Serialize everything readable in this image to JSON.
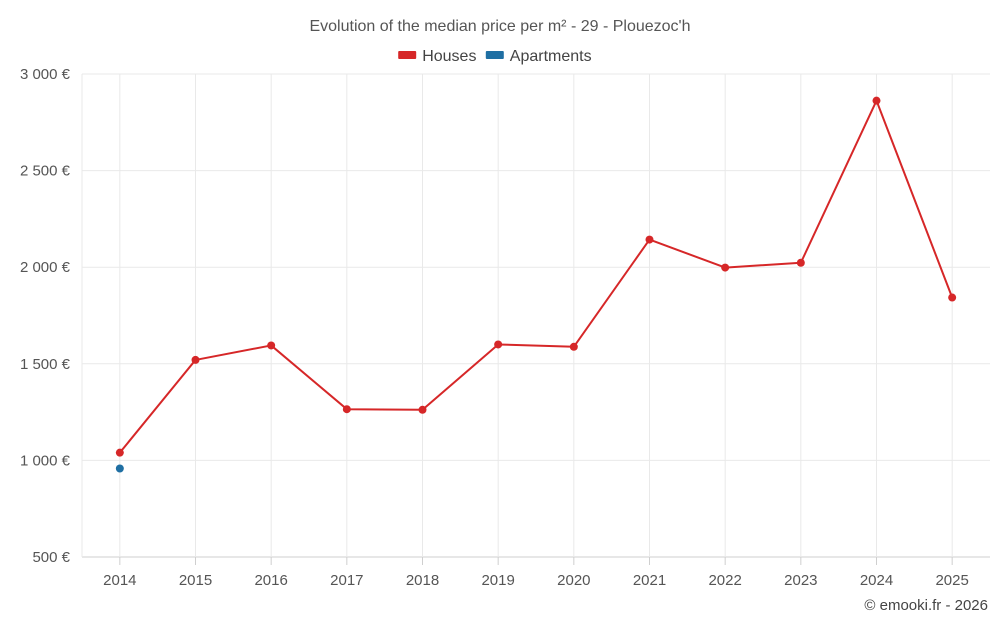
{
  "chart_data": {
    "type": "line",
    "title": "Evolution of the median price per m² - 29 - Plouezoc'h",
    "categories": [
      "2014",
      "2015",
      "2016",
      "2017",
      "2018",
      "2019",
      "2020",
      "2021",
      "2022",
      "2023",
      "2024",
      "2025"
    ],
    "ylim": [
      500,
      3000
    ],
    "yticks": [
      500,
      1000,
      1500,
      2000,
      2500,
      3000
    ],
    "ytick_labels": [
      "500 €",
      "1 000 €",
      "1 500 €",
      "2 000 €",
      "2 500 €",
      "3 000 €"
    ],
    "grid": true,
    "legend_position": "top-center",
    "series": [
      {
        "name": "Houses",
        "color": "#d62728",
        "values": [
          1040,
          1520,
          1595,
          1265,
          1262,
          1600,
          1588,
          2143,
          1998,
          2023,
          2862,
          1843
        ]
      },
      {
        "name": "Apartments",
        "color": "#1f6fa3",
        "values": [
          958,
          null,
          null,
          null,
          null,
          null,
          null,
          null,
          null,
          null,
          null,
          null
        ]
      }
    ]
  },
  "credit": "© emooki.fr - 2026"
}
